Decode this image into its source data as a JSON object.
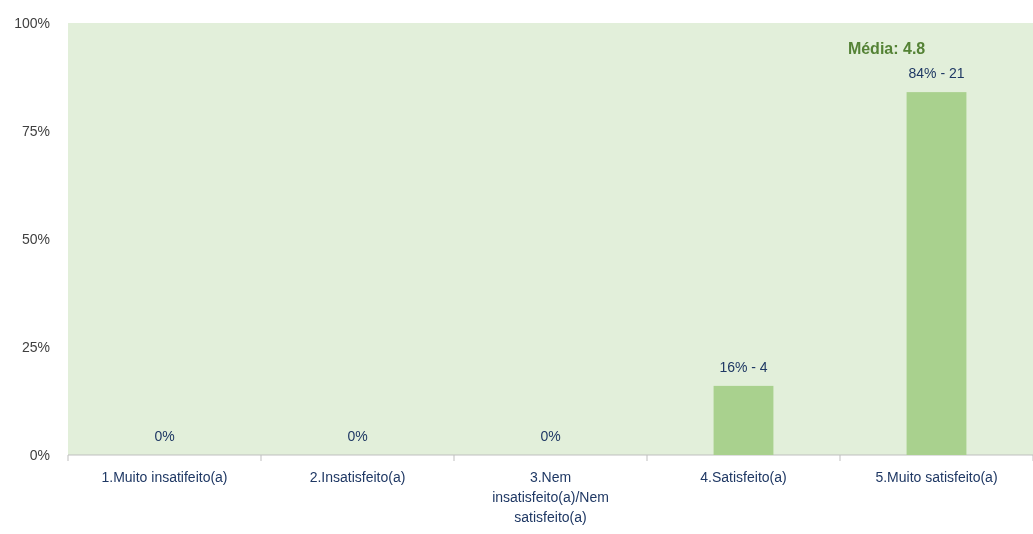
{
  "chart_data": {
    "type": "bar",
    "categories": [
      "1.Muito insatifeito(a)",
      "2.Insatisfeito(a)",
      "3.Nem insatisfeito(a)/Nem satisfeito(a)",
      "4.Satisfeito(a)",
      "5.Muito satisfeito(a)"
    ],
    "values": [
      0,
      0,
      0,
      16,
      84
    ],
    "color": "#a9d18e",
    "value_labels": [
      "0%",
      "0%",
      "0%",
      "16% - 4",
      "84% - 21"
    ],
    "ylim": [
      0,
      100
    ],
    "yticks": [
      {
        "value": 0,
        "label": "0%"
      },
      {
        "value": 25,
        "label": "25%"
      },
      {
        "value": 50,
        "label": "50%"
      },
      {
        "value": 75,
        "label": "75%"
      },
      {
        "value": 100,
        "label": "100%"
      }
    ],
    "grid": false,
    "annotations": [
      "Média: 4.8"
    ]
  }
}
